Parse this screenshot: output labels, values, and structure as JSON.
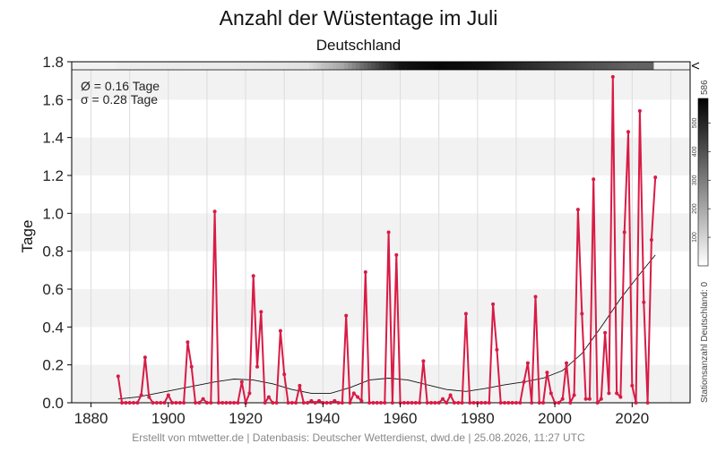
{
  "chart_data": {
    "type": "line",
    "title": "Anzahl der Wüstentage im Juli",
    "subtitle": "Deutschland",
    "ylabel": "Tage",
    "xlabel": "",
    "xlim": [
      1875,
      2035
    ],
    "ylim": [
      0,
      1.8
    ],
    "x_ticks": [
      1880,
      1900,
      1920,
      1940,
      1960,
      1980,
      2000,
      2020
    ],
    "y_ticks": [
      0.0,
      0.2,
      0.4,
      0.6,
      0.8,
      1.0,
      1.2,
      1.4,
      1.6,
      1.8
    ],
    "y_tick_labels": [
      "0.0",
      "0.2",
      "0.4",
      "0.6",
      "0.8",
      "1.0",
      "1.2",
      "1.4",
      "1.6",
      "1.8"
    ],
    "x_tick_labels": [
      "1880",
      "1900",
      "1920",
      "1940",
      "1960",
      "1980",
      "2000",
      "2020"
    ],
    "stats": {
      "mean": "Ø = 0.16 Tage",
      "sigma": "σ = 0.28 Tage"
    },
    "series": [
      {
        "color": "#d81b45",
        "x": [
          1887,
          1888,
          1889,
          1890,
          1891,
          1892,
          1893,
          1894,
          1895,
          1896,
          1897,
          1898,
          1899,
          1900,
          1901,
          1902,
          1903,
          1904,
          1905,
          1906,
          1907,
          1908,
          1909,
          1910,
          1911,
          1912,
          1913,
          1914,
          1915,
          1916,
          1917,
          1918,
          1919,
          1920,
          1921,
          1922,
          1923,
          1924,
          1925,
          1926,
          1927,
          1928,
          1929,
          1930,
          1931,
          1932,
          1933,
          1934,
          1935,
          1936,
          1937,
          1938,
          1939,
          1940,
          1941,
          1942,
          1943,
          1944,
          1945,
          1946,
          1947,
          1948,
          1949,
          1950,
          1951,
          1952,
          1953,
          1954,
          1955,
          1956,
          1957,
          1958,
          1959,
          1960,
          1961,
          1962,
          1963,
          1964,
          1965,
          1966,
          1967,
          1968,
          1969,
          1970,
          1971,
          1972,
          1973,
          1974,
          1975,
          1976,
          1977,
          1978,
          1979,
          1980,
          1981,
          1982,
          1983,
          1984,
          1985,
          1986,
          1987,
          1988,
          1989,
          1990,
          1991,
          1992,
          1993,
          1994,
          1995,
          1996,
          1997,
          1998,
          1999,
          2000,
          2001,
          2002,
          2003,
          2004,
          2005,
          2006,
          2007,
          2008,
          2009,
          2010,
          2011,
          2012,
          2013,
          2014,
          2015,
          2016,
          2017,
          2018,
          2019,
          2020,
          2021,
          2022,
          2023,
          2024,
          2025,
          2026
        ],
        "y": [
          0.14,
          0.0,
          0.0,
          0.0,
          0.0,
          0.0,
          0.04,
          0.24,
          0.03,
          0.0,
          0.0,
          0.0,
          0.0,
          0.04,
          0.0,
          0.0,
          0.0,
          0.0,
          0.32,
          0.19,
          0.0,
          0.0,
          0.02,
          0.0,
          0.0,
          1.01,
          0.0,
          0.0,
          0.0,
          0.0,
          0.0,
          0.0,
          0.11,
          0.0,
          0.05,
          0.67,
          0.19,
          0.48,
          0.0,
          0.03,
          0.0,
          0.0,
          0.38,
          0.15,
          0.0,
          0.0,
          0.0,
          0.09,
          0.0,
          0.0,
          0.01,
          0.0,
          0.01,
          0.0,
          0.0,
          0.0,
          0.01,
          0.0,
          0.0,
          0.46,
          0.0,
          0.05,
          0.03,
          0.01,
          0.69,
          0.0,
          0.0,
          0.0,
          0.0,
          0.0,
          0.9,
          0.0,
          0.78,
          0.0,
          0.0,
          0.0,
          0.0,
          0.0,
          0.0,
          0.22,
          0.0,
          0.0,
          0.0,
          0.0,
          0.02,
          0.0,
          0.04,
          0.0,
          0.0,
          0.0,
          0.47,
          0.0,
          0.0,
          0.0,
          0.0,
          0.0,
          0.0,
          0.52,
          0.28,
          0.0,
          0.0,
          0.0,
          0.0,
          0.0,
          0.0,
          0.11,
          0.21,
          0.0,
          0.56,
          0.0,
          0.0,
          0.16,
          0.05,
          0.0,
          0.0,
          0.02,
          0.21,
          0.0,
          0.04,
          1.02,
          0.47,
          0.02,
          0.02,
          1.18,
          0.0,
          0.02,
          0.37,
          0.05,
          1.72,
          0.05,
          0.03,
          0.9,
          1.43,
          0.09,
          0.0,
          1.54,
          0.53,
          0.0,
          0.86,
          1.19
        ]
      },
      {
        "color": "#111111",
        "smooth": true,
        "x": [
          1887,
          1892,
          1897,
          1902,
          1907,
          1912,
          1917,
          1922,
          1927,
          1932,
          1937,
          1942,
          1947,
          1952,
          1957,
          1962,
          1967,
          1972,
          1977,
          1982,
          1987,
          1992,
          1997,
          2002,
          2007,
          2012,
          2017,
          2022,
          2026
        ],
        "y": [
          0.02,
          0.03,
          0.05,
          0.07,
          0.09,
          0.11,
          0.125,
          0.12,
          0.1,
          0.07,
          0.05,
          0.05,
          0.08,
          0.12,
          0.13,
          0.12,
          0.095,
          0.07,
          0.06,
          0.075,
          0.095,
          0.11,
          0.13,
          0.17,
          0.26,
          0.4,
          0.55,
          0.68,
          0.78
        ]
      }
    ],
    "station_strip": {
      "label": "Stationsanzahl Deutschland: 0",
      "top_label": "586",
      "colorbar_ticks": [
        "100",
        "200",
        "300",
        "400",
        "500"
      ],
      "colorbar_tick_values": [
        100,
        200,
        300,
        400,
        500
      ],
      "max": 586,
      "start_year": 1887,
      "end_year": 2025,
      "values": [
        [
          1887,
          40
        ],
        [
          1900,
          45
        ],
        [
          1920,
          50
        ],
        [
          1936,
          70
        ],
        [
          1940,
          140
        ],
        [
          1945,
          200
        ],
        [
          1950,
          330
        ],
        [
          1955,
          450
        ],
        [
          1960,
          540
        ],
        [
          1970,
          570
        ],
        [
          1980,
          550
        ],
        [
          1990,
          500
        ],
        [
          2000,
          450
        ],
        [
          2010,
          400
        ],
        [
          2020,
          360
        ],
        [
          2025,
          360
        ]
      ]
    },
    "legend": "none"
  },
  "footer": "Erstellt von mtwetter.de | Datenbasis: Deutscher Wetterdienst, dwd.de | 25.08.2026, 11:27 UTC",
  "colors": {
    "main_line": "#d81b45",
    "trend_line": "#111111",
    "band": "#f2f2f2",
    "grid": "#dcdcdc"
  }
}
